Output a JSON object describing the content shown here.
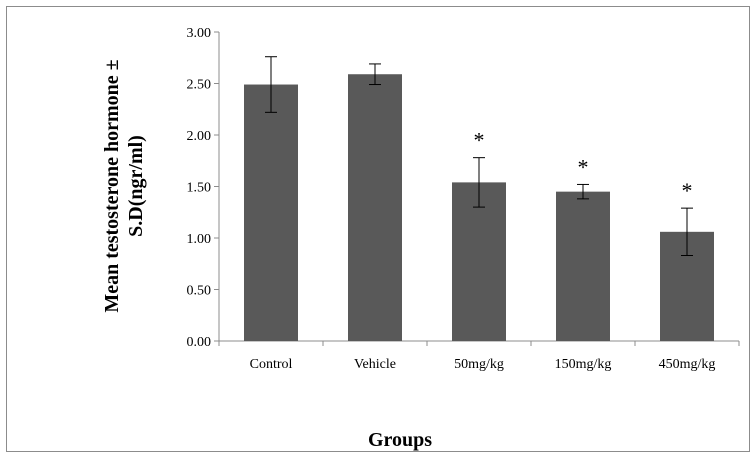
{
  "chart_data": {
    "type": "bar",
    "categories": [
      "Control",
      "Vehicle",
      "50mg/kg",
      "150mg/kg",
      "450mg/kg"
    ],
    "values": [
      2.49,
      2.59,
      1.54,
      1.45,
      1.06
    ],
    "error": [
      0.27,
      0.1,
      0.24,
      0.07,
      0.23
    ],
    "significance": [
      "",
      "",
      "*",
      "*",
      "*"
    ],
    "ylim": [
      0,
      3
    ],
    "yticks": [
      "0.00",
      "0.50",
      "1.00",
      "1.50",
      "2.00",
      "2.50",
      "3.00"
    ],
    "ytick_values": [
      0,
      0.5,
      1,
      1.5,
      2,
      2.5,
      3
    ],
    "xlabel": "Groups",
    "ylabel_lines": [
      "Mean testosterone hormone ±",
      "S.D(ngr/ml)"
    ],
    "bar_color": "#595959",
    "grid": false
  }
}
